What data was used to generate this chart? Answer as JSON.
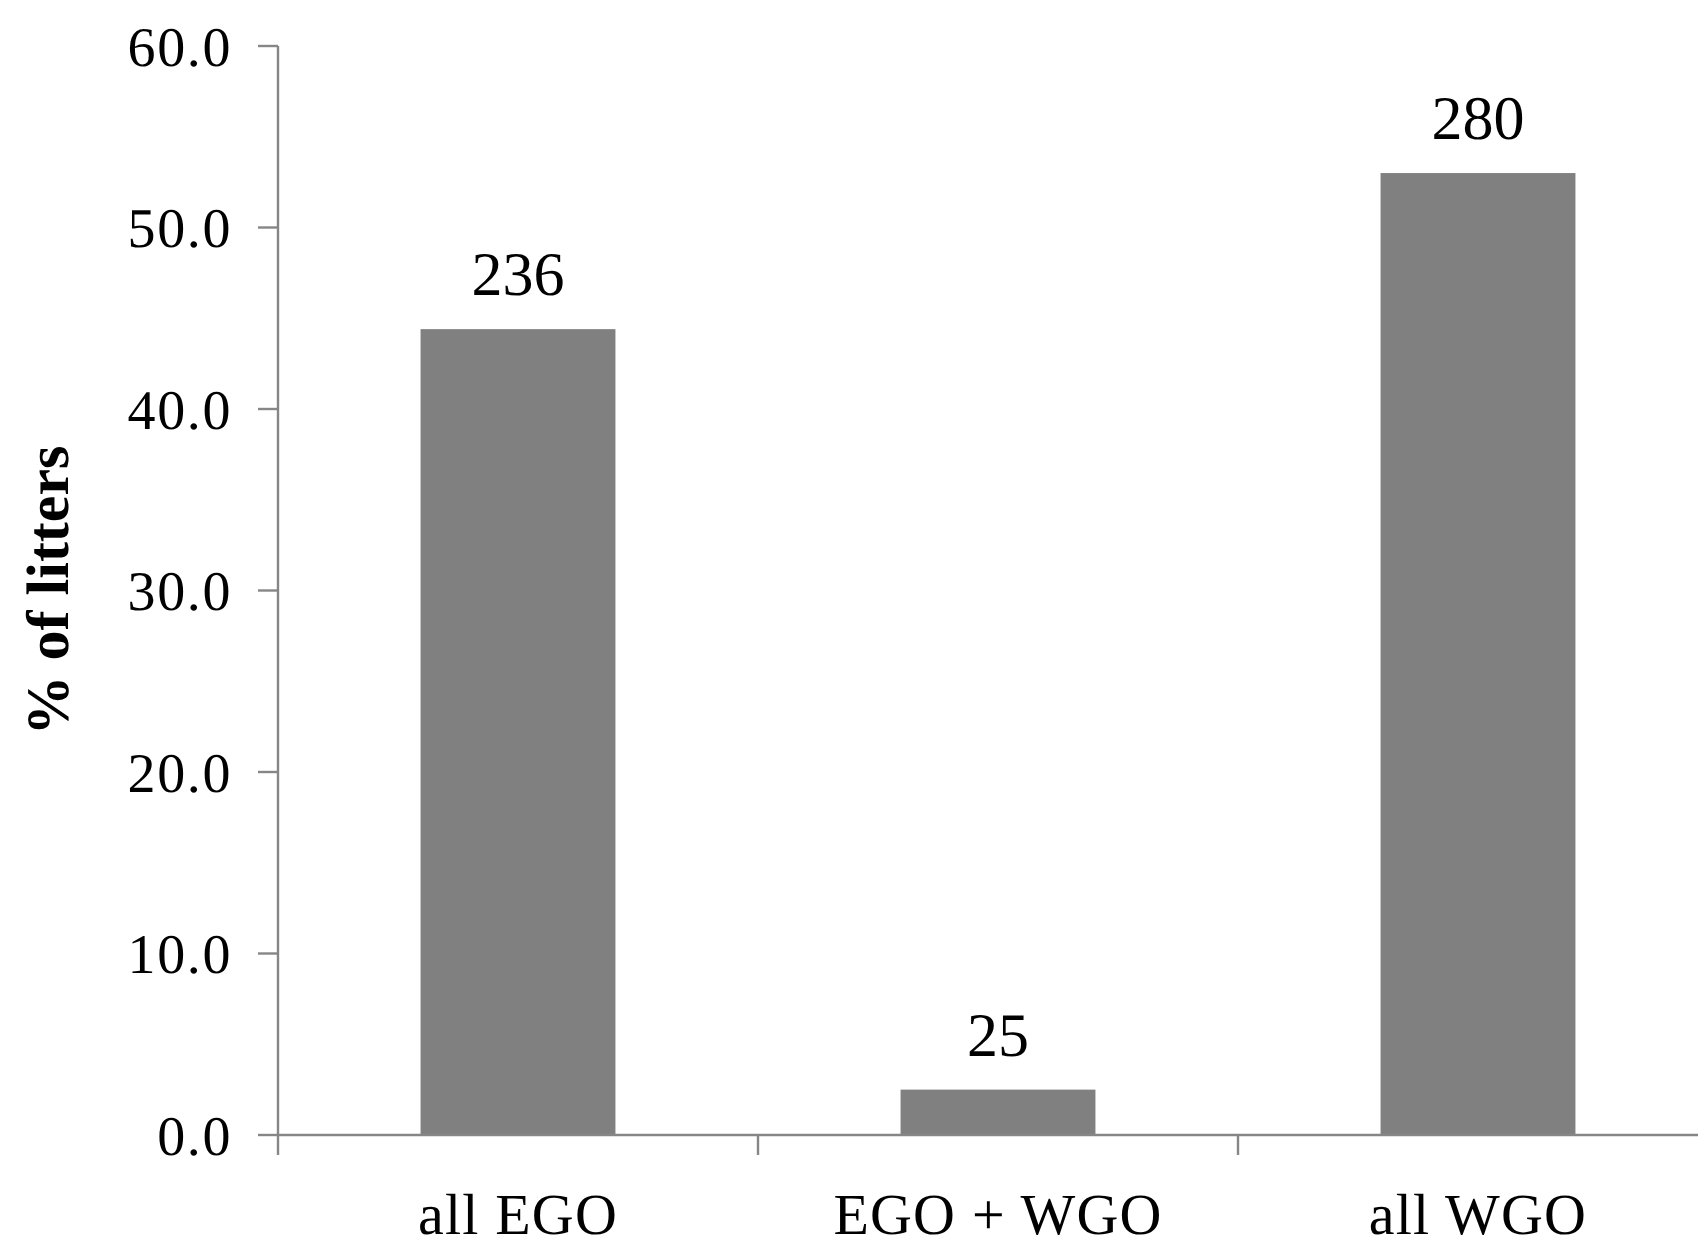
{
  "chart_data": {
    "type": "bar",
    "ylabel": "% of litters",
    "categories": [
      "all EGO",
      "EGO + WGO",
      "all WGO"
    ],
    "values": [
      44.4,
      2.5,
      53.0
    ],
    "color": "#808080",
    "ylim": [
      0,
      60
    ],
    "yticks": [
      {
        "value": 0,
        "label": "0.0"
      },
      {
        "value": 10,
        "label": "10.0"
      },
      {
        "value": 20,
        "label": "20.0"
      },
      {
        "value": 30,
        "label": "30.0"
      },
      {
        "value": 40,
        "label": "40.0"
      },
      {
        "value": 50,
        "label": "50.0"
      },
      {
        "value": 60,
        "label": "60.0"
      }
    ],
    "annotations": [
      {
        "text": "236",
        "x": "all EGO",
        "y": 44.4
      },
      {
        "text": "25",
        "x": "EGO + WGO",
        "y": 2.5
      },
      {
        "text": "280",
        "x": "all WGO",
        "y": 53.0
      }
    ]
  }
}
